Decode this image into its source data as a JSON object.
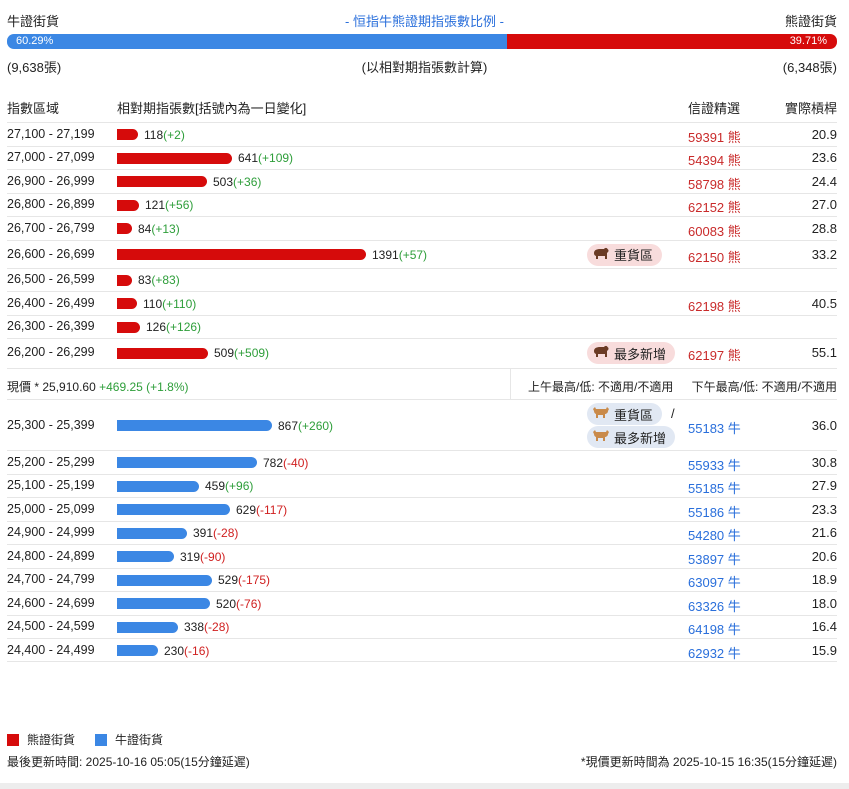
{
  "header": {
    "bull_label": "牛證街貨",
    "bear_label": "熊證街貨",
    "title": "- 恒指牛熊證期指張數比例 -",
    "bull_pct": "60.29%",
    "bear_pct": "39.71%",
    "bull_ratio": 0.6029,
    "bull_count": "(9,638張)",
    "bear_count": "(6,348張)",
    "note": "(以相對期指張數計算)"
  },
  "columns": {
    "range": "指數區域",
    "qty": "相對期指張數[括號內為一日變化]",
    "code": "信證精選",
    "leverage": "實際槓桿"
  },
  "bear_rows": [
    {
      "range": "27,100 - 27,199",
      "qty": "118",
      "chg": "(+2)",
      "code": "59391",
      "side": "熊",
      "lev": "20.9"
    },
    {
      "range": "27,000 - 27,099",
      "qty": "641",
      "chg": "(+109)",
      "code": "54394",
      "side": "熊",
      "lev": "23.6"
    },
    {
      "range": "26,900 - 26,999",
      "qty": "503",
      "chg": "(+36)",
      "code": "58798",
      "side": "熊",
      "lev": "24.4"
    },
    {
      "range": "26,800 - 26,899",
      "qty": "121",
      "chg": "(+56)",
      "code": "62152",
      "side": "熊",
      "lev": "27.0"
    },
    {
      "range": "26,700 - 26,799",
      "qty": "84",
      "chg": "(+13)",
      "code": "60083",
      "side": "熊",
      "lev": "28.8"
    },
    {
      "range": "26,600 - 26,699",
      "qty": "1391",
      "chg": "(+57)",
      "code": "62150",
      "side": "熊",
      "lev": "33.2",
      "tag": "重貨區"
    },
    {
      "range": "26,500 - 26,599",
      "qty": "83",
      "chg": "(+83)",
      "code": "",
      "side": "",
      "lev": ""
    },
    {
      "range": "26,400 - 26,499",
      "qty": "110",
      "chg": "(+110)",
      "code": "62198",
      "side": "熊",
      "lev": "40.5"
    },
    {
      "range": "26,300 - 26,399",
      "qty": "126",
      "chg": "(+126)",
      "code": "",
      "side": "",
      "lev": ""
    },
    {
      "range": "26,200 - 26,299",
      "qty": "509",
      "chg": "(+509)",
      "code": "62197",
      "side": "熊",
      "lev": "55.1",
      "tag": "最多新增"
    }
  ],
  "current": {
    "label": "現價 *",
    "price": "25,910.60",
    "change": "+469.25 (+1.8%)",
    "am": "上午最高/低: 不適用/不適用",
    "pm": "下午最高/低: 不適用/不適用"
  },
  "bull_rows": [
    {
      "range": "25,300 - 25,399",
      "qty": "867",
      "chg": "(+260)",
      "code": "55183",
      "side": "牛",
      "lev": "36.0",
      "tag": "重貨區",
      "tag2": "最多新增",
      "slash": "/"
    },
    {
      "range": "25,200 - 25,299",
      "qty": "782",
      "chg": "(-40)",
      "code": "55933",
      "side": "牛",
      "lev": "30.8"
    },
    {
      "range": "25,100 - 25,199",
      "qty": "459",
      "chg": "(+96)",
      "code": "55185",
      "side": "牛",
      "lev": "27.9"
    },
    {
      "range": "25,000 - 25,099",
      "qty": "629",
      "chg": "(-117)",
      "code": "55186",
      "side": "牛",
      "lev": "23.3"
    },
    {
      "range": "24,900 - 24,999",
      "qty": "391",
      "chg": "(-28)",
      "code": "54280",
      "side": "牛",
      "lev": "21.6"
    },
    {
      "range": "24,800 - 24,899",
      "qty": "319",
      "chg": "(-90)",
      "code": "53897",
      "side": "牛",
      "lev": "20.6"
    },
    {
      "range": "24,700 - 24,799",
      "qty": "529",
      "chg": "(-175)",
      "code": "63097",
      "side": "牛",
      "lev": "18.9"
    },
    {
      "range": "24,600 - 24,699",
      "qty": "520",
      "chg": "(-76)",
      "code": "63326",
      "side": "牛",
      "lev": "18.0"
    },
    {
      "range": "24,500 - 24,599",
      "qty": "338",
      "chg": "(-28)",
      "code": "64198",
      "side": "牛",
      "lev": "16.4"
    },
    {
      "range": "24,400 - 24,499",
      "qty": "230",
      "chg": "(-16)",
      "code": "62932",
      "side": "牛",
      "lev": "15.9"
    }
  ],
  "legend": {
    "bear": "熊證街貨",
    "bull": "牛證街貨"
  },
  "footer": {
    "last_update": "最後更新時間: 2025-10-16 05:05(15分鐘延遲)",
    "price_update": "*現價更新時間為 2025-10-15 16:35(15分鐘延遲)"
  },
  "colors": {
    "bear": "#d60b0b",
    "bull": "#3b87e4",
    "positive": "#2e9e3a",
    "negative": "#d02020"
  },
  "icons": {
    "bear_tag_icon": "bear-icon",
    "bull_tag_icon": "bull-icon"
  }
}
